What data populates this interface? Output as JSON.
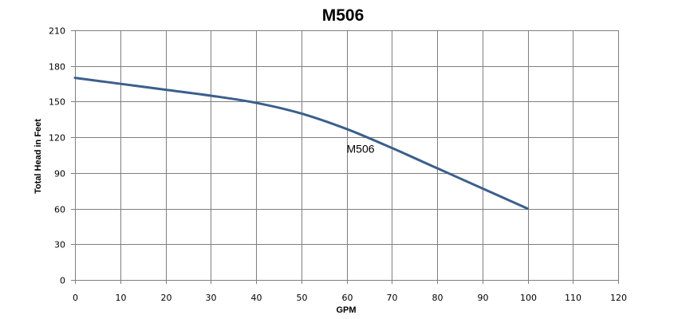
{
  "chart_data": {
    "type": "line",
    "title": "M506",
    "xlabel": "GPM",
    "ylabel": "Total Head in Feet",
    "xlim": [
      0,
      120
    ],
    "ylim": [
      0,
      210
    ],
    "x_ticks": [
      0,
      10,
      20,
      30,
      40,
      50,
      60,
      70,
      80,
      90,
      100,
      110,
      120
    ],
    "y_ticks": [
      0,
      30,
      60,
      90,
      120,
      150,
      180,
      210
    ],
    "grid": true,
    "series": [
      {
        "name": "M506",
        "color": "#3b5f8c",
        "x": [
          0,
          10,
          20,
          30,
          40,
          50,
          60,
          70,
          80,
          90,
          100
        ],
        "y": [
          170,
          165,
          160,
          155,
          149,
          140,
          127,
          111,
          94,
          77,
          60
        ]
      }
    ]
  }
}
